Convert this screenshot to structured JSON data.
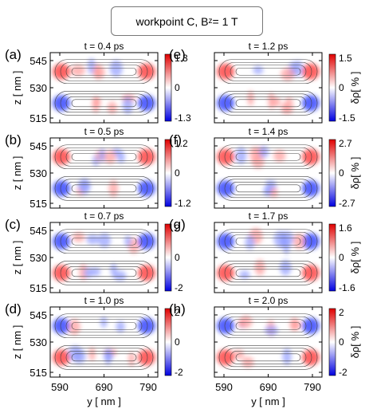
{
  "chart_data": {
    "type": "heatmap",
    "title": {
      "prefix": "workpoint C,  B",
      "sub": "z",
      "suffix": "= 1 T"
    },
    "xlabel": "y [ nm ]",
    "ylabel": "z [ nm ]",
    "colorbar_label": "δρ[ % ]",
    "xticks": [
      "590",
      "690",
      "790"
    ],
    "yticks": [
      "545",
      "530",
      "515"
    ],
    "colormap": {
      "negative": "#0000ff",
      "zero": "#ffffff",
      "positive": "#ff0000"
    },
    "panels": [
      {
        "label": "(a)",
        "time": "t = 0.4 ps",
        "cbar_max": "1.3",
        "cbar_zero": "0",
        "cbar_min": "-1.3"
      },
      {
        "label": "(b)",
        "time": "t = 0.5 ps",
        "cbar_max": "1.2",
        "cbar_zero": "0",
        "cbar_min": "-1.2"
      },
      {
        "label": "(c)",
        "time": "t = 0.7 ps",
        "cbar_max": "2",
        "cbar_zero": "0",
        "cbar_min": "-2"
      },
      {
        "label": "(d)",
        "time": "t = 1.0 ps",
        "cbar_max": "2",
        "cbar_zero": "0",
        "cbar_min": "-2"
      },
      {
        "label": "(e)",
        "time": "t = 1.2 ps",
        "cbar_max": "1.5",
        "cbar_zero": "0",
        "cbar_min": "-1.5"
      },
      {
        "label": "(f)",
        "time": "t = 1.4 ps",
        "cbar_max": "2.7",
        "cbar_zero": "0",
        "cbar_min": "-2.7"
      },
      {
        "label": "(g)",
        "time": "t = 1.7 ps",
        "cbar_max": "1.6",
        "cbar_zero": "0",
        "cbar_min": "-1.6"
      },
      {
        "label": "(h)",
        "time": "t = 2.0 ps",
        "cbar_max": "2",
        "cbar_zero": "0",
        "cbar_min": "-2"
      }
    ]
  }
}
